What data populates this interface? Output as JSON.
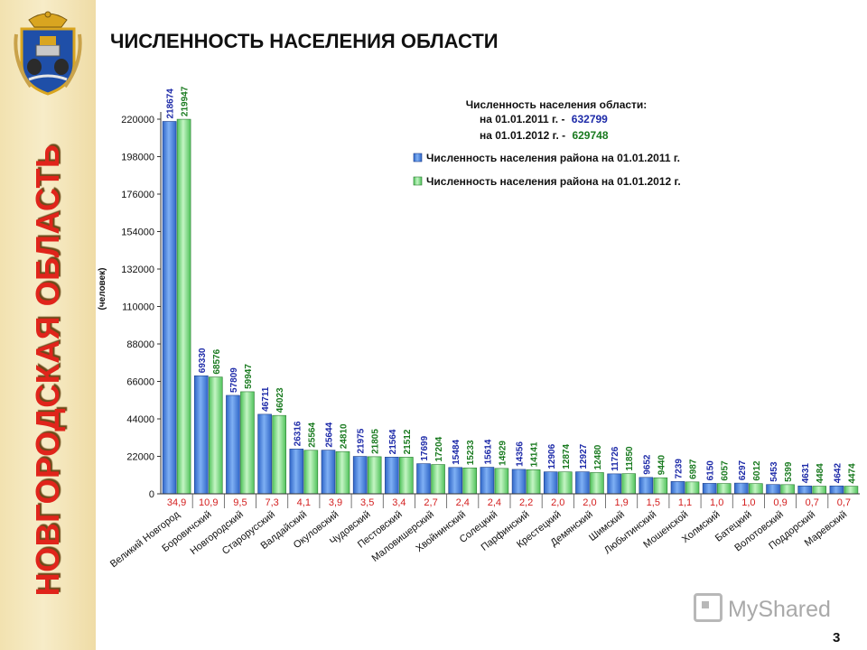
{
  "sidebar": {
    "region_title": "НОВГОРОДСКАЯ ОБЛАСТЬ",
    "emblem_icon": "coat-of-arms-icon"
  },
  "header": {
    "title": "ЧИСЛЕННОСТЬ НАСЕЛЕНИЯ ОБЛАСТИ"
  },
  "footer": {
    "page_number": "3",
    "watermark": "MyShared"
  },
  "chart_data": {
    "type": "bar",
    "ylabel": "(человек)",
    "ylim": [
      0,
      220000
    ],
    "yticks": [
      "0",
      "22000",
      "44000",
      "66000",
      "88000",
      "110000",
      "132000",
      "154000",
      "176000",
      "198000",
      "220000"
    ],
    "ytick_values": [
      0,
      22000,
      44000,
      66000,
      88000,
      110000,
      132000,
      154000,
      176000,
      198000,
      220000
    ],
    "grid": false,
    "legend_position": "top-right",
    "colors": {
      "series_2011": "#4f86e0",
      "series_2012": "#86e08a",
      "share": "#d42020",
      "label_2011": "#1d2aa8",
      "label_2012": "#197a1f"
    },
    "info": {
      "title": "Численность населения области:",
      "line1_text": "на 01.01.2011 г. -",
      "line1_value": "632799",
      "line2_text": "на 01.01.2012 г. -",
      "line2_value": "629748"
    },
    "categories": [
      "Великий Новгород",
      "Боровичский",
      "Новгородский",
      "Старорусский",
      "Валдайский",
      "Окуловский",
      "Чудовский",
      "Пестовский",
      "Маловишерский",
      "Хвойнинский",
      "Солецкий",
      "Парфинский",
      "Крестецкий",
      "Демянский",
      "Шимский",
      "Любытинский",
      "Мошенской",
      "Холмский",
      "Батецкий",
      "Волотовский",
      "Поддорский",
      "Маревский"
    ],
    "series": [
      {
        "name": "Численность населения района на 01.01.2011 г.",
        "values": [
          218674,
          69330,
          57809,
          46711,
          26316,
          25644,
          21975,
          21564,
          17699,
          15484,
          15614,
          14356,
          12906,
          12927,
          11726,
          9652,
          7239,
          6150,
          6297,
          5453,
          4631,
          4642
        ]
      },
      {
        "name": "Численность населения района на 01.01.2012 г.",
        "values": [
          219947,
          68576,
          59947,
          46023,
          25564,
          24810,
          21805,
          21512,
          17204,
          15233,
          14929,
          14141,
          12874,
          12480,
          11850,
          9440,
          6987,
          6057,
          6012,
          5399,
          4484,
          4474
        ]
      }
    ],
    "value_labels_2011": [
      "218674",
      "69330",
      "57809",
      "46711",
      "26316",
      "25644",
      "21975",
      "21564",
      "17699",
      "15484",
      "15614",
      "14356",
      "12906",
      "12927",
      "11726",
      "9652",
      "7239",
      "6150",
      "6297",
      "5453",
      "4631",
      "4642"
    ],
    "value_labels_2012": [
      "219947",
      "68576",
      "59947",
      "46023",
      "25564",
      "24810",
      "21805",
      "21512",
      "17204",
      "15233",
      "14929",
      "14141",
      "12874",
      "12480",
      "11850",
      "9440",
      "6987",
      "6057",
      "6012",
      "5399",
      "4484",
      "4474"
    ],
    "shares": [
      "34,9",
      "10,9",
      "9,5",
      "7,3",
      "4,1",
      "3,9",
      "3,5",
      "3,4",
      "2,7",
      "2,4",
      "2,4",
      "2,2",
      "2,0",
      "2,0",
      "1,9",
      "1,5",
      "1,1",
      "1,0",
      "1,0",
      "0,9",
      "0,7",
      "0,7"
    ]
  }
}
